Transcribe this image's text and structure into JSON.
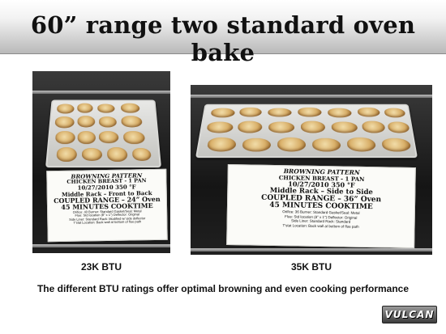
{
  "slide": {
    "title": "60” range two standard oven bake",
    "caption": "The different BTU ratings offer optimal browning and even cooking performance",
    "logo_text": "VULCAN"
  },
  "photos": {
    "left": {
      "label": "23K BTU",
      "sign": {
        "line1": "BROWNING PATTERN",
        "line2": "CHICKEN BREAST - 1 PAN",
        "date": "10/27/2010",
        "temp": "350 °F",
        "line4": "Middle Rack – Front to Back",
        "line5": "COUPLED RANGE – 24” Oven",
        "line6": "45 MINUTES COOKTIME",
        "detail1": "Orifice: 43    Burner: Standard    Gasket/Seal: Metal",
        "detail2": "Flue: Std location (8\" x 1\")    Deflector: Original",
        "detail3": "Side Liner: Standard    Rack: Modified w/ side deflector",
        "detail4": "T'stat Location: Back wall at bottom of flue path"
      }
    },
    "right": {
      "label": "35K BTU",
      "sign": {
        "line1": "BROWNING PATTERN",
        "line2": "CHICKEN BREAST - 1 PAN",
        "date": "10/27/2010",
        "temp": "350 °F",
        "line4": "Middle Rack – Side to Side",
        "line5": "COUPLED RANGE – 36” Oven",
        "line6": "45 MINUTES COOKTIME",
        "detail1": "Orifice: 36    Burner: Standard    Gasket/Seal: Metal",
        "detail2": "Flue: Std location (8\" x 1\")    Deflector: Original",
        "detail3": "Side Liner: Standard    Rack: Standard",
        "detail4": "T'stat Location: Back wall at bottom of flue path"
      }
    }
  }
}
